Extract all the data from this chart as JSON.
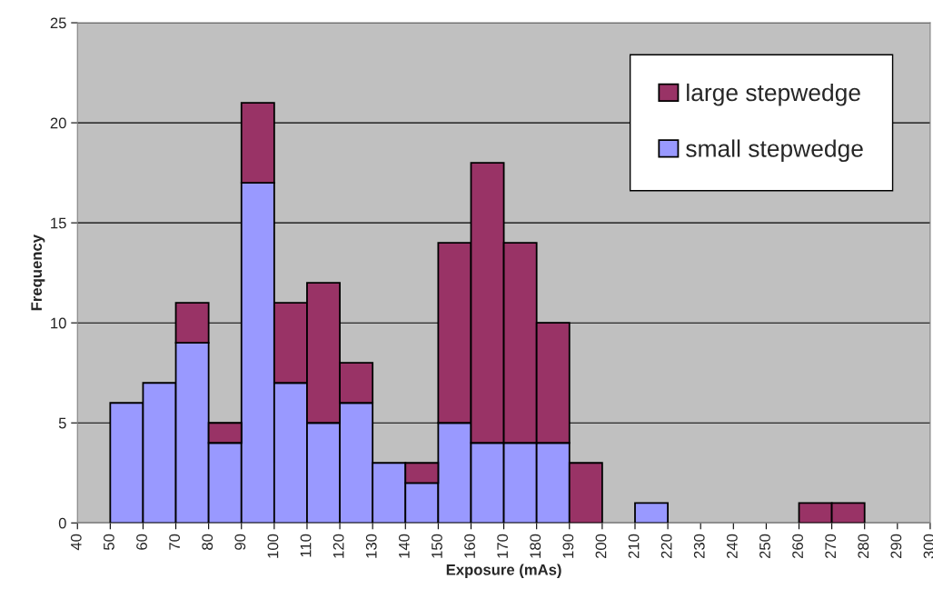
{
  "chart_data": {
    "type": "bar",
    "xlabel": "Exposure (mAs)",
    "ylabel": "Frequency",
    "x": [
      45,
      55,
      65,
      75,
      85,
      95,
      105,
      115,
      125,
      135,
      145,
      155,
      165,
      175,
      185,
      195,
      205,
      215,
      225,
      235,
      245,
      255,
      265,
      275,
      285,
      295
    ],
    "stacked": true,
    "series": [
      {
        "name": "small stepwedge",
        "color": "#9999ff",
        "values": [
          0,
          6,
          7,
          9,
          4,
          17,
          7,
          5,
          6,
          3,
          2,
          5,
          4,
          4,
          4,
          0,
          0,
          1,
          0,
          0,
          0,
          0,
          0,
          0,
          0,
          0
        ]
      },
      {
        "name": "large stepwedge",
        "color": "#993366",
        "values": [
          0,
          0,
          0,
          2,
          1,
          4,
          4,
          7,
          2,
          0,
          1,
          9,
          14,
          10,
          6,
          3,
          0,
          0,
          0,
          0,
          0,
          0,
          1,
          1,
          0,
          0
        ]
      }
    ],
    "xlim": [
      40,
      300
    ],
    "xticks": [
      40,
      50,
      60,
      70,
      80,
      90,
      100,
      110,
      120,
      130,
      140,
      150,
      160,
      170,
      180,
      190,
      200,
      210,
      220,
      230,
      240,
      250,
      260,
      270,
      280,
      290,
      300
    ],
    "ylim": [
      0,
      25
    ],
    "yticks": [
      0,
      5,
      10,
      15,
      20,
      25
    ],
    "grid": "y",
    "legend": "top right"
  }
}
